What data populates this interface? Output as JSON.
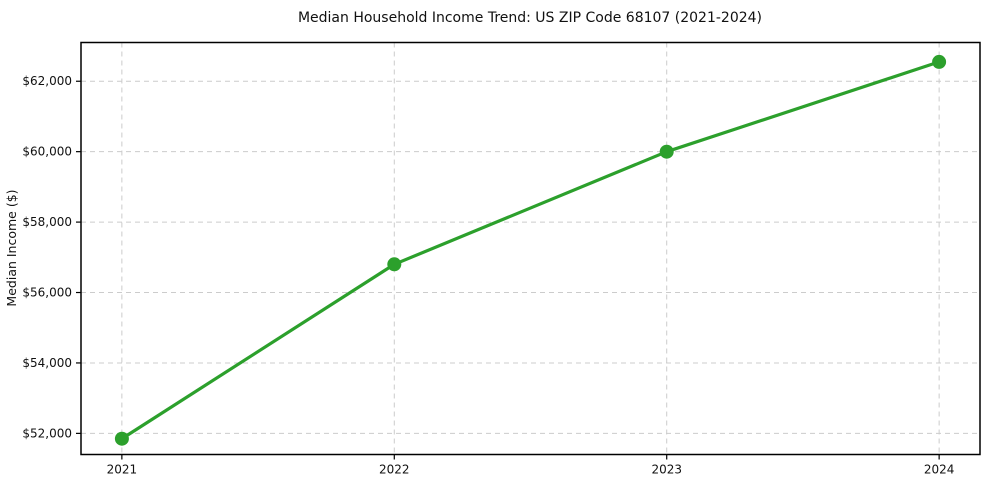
{
  "page": {
    "background": "#ffffff"
  },
  "chart_data": {
    "type": "line",
    "title": "Median Household Income Trend: US ZIP Code 68107 (2021-2024)",
    "xlabel": "",
    "ylabel": "Median Income ($)",
    "categories": [
      "2021",
      "2022",
      "2023",
      "2024"
    ],
    "x": [
      2021,
      2022,
      2023,
      2024
    ],
    "series": [
      {
        "values": [
          51850,
          56800,
          60000,
          62550
        ],
        "color": "#2ca02c",
        "line_width": 3.2,
        "marker": "circle",
        "marker_size": 7
      }
    ],
    "xlim": [
      2020.85,
      2024.15
    ],
    "ylim": [
      51400,
      63100
    ],
    "yticks": [
      52000,
      54000,
      56000,
      58000,
      60000,
      62000
    ],
    "ytick_labels": [
      "$52,000",
      "$54,000",
      "$56,000",
      "$58,000",
      "$60,000",
      "$62,000"
    ],
    "grid": true,
    "grid_color": "#cccccc",
    "grid_dash": "5 4",
    "spine_color": "#000000",
    "legend": "none"
  }
}
